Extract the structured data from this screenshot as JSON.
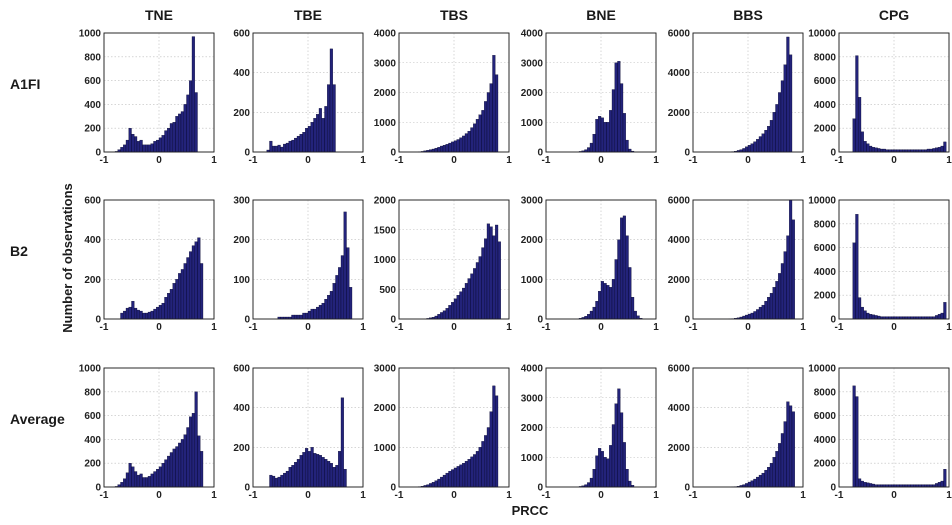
{
  "colors": {
    "bar": "#23237a"
  },
  "chart_data": {
    "type": "bar",
    "xlabel": "PRCC",
    "ylabel": "Number of observations",
    "grid": true,
    "columns": [
      "TNE",
      "TBE",
      "TBS",
      "BNE",
      "BBS",
      "CPG"
    ],
    "rows": [
      "A1FI",
      "B2",
      "Average"
    ],
    "bin_edges": [
      -1,
      -0.95,
      -0.9,
      -0.85,
      -0.8,
      -0.75,
      -0.7,
      -0.65,
      -0.6,
      -0.55,
      -0.5,
      -0.45,
      -0.4,
      -0.35,
      -0.3,
      -0.25,
      -0.2,
      -0.15,
      -0.1,
      -0.05,
      0,
      0.05,
      0.1,
      0.15,
      0.2,
      0.25,
      0.3,
      0.35,
      0.4,
      0.45,
      0.5,
      0.55,
      0.6,
      0.65,
      0.7,
      0.75,
      0.8,
      0.85,
      0.9,
      0.95,
      1
    ],
    "xlim": [
      -1,
      1
    ],
    "xticks": [
      "-1",
      "0",
      "1"
    ],
    "panels": [
      [
        {
          "ylim": [
            0,
            1000
          ],
          "yticks": [
            "0",
            "200",
            "400",
            "600",
            "800",
            "1000"
          ],
          "values": [
            0,
            0,
            0,
            0,
            5,
            20,
            40,
            60,
            100,
            200,
            150,
            130,
            90,
            100,
            60,
            60,
            60,
            70,
            90,
            100,
            120,
            140,
            180,
            200,
            240,
            250,
            300,
            320,
            340,
            400,
            480,
            600,
            970,
            500,
            0,
            0,
            0,
            0,
            0,
            0
          ]
        },
        {
          "ylim": [
            0,
            600
          ],
          "yticks": [
            "0",
            "200",
            "400",
            "600"
          ],
          "values": [
            0,
            0,
            0,
            0,
            0,
            10,
            55,
            30,
            30,
            35,
            25,
            40,
            45,
            55,
            60,
            70,
            80,
            90,
            100,
            120,
            130,
            150,
            170,
            190,
            220,
            170,
            230,
            340,
            520,
            340,
            0,
            0,
            0,
            0,
            0,
            0,
            0,
            0,
            0,
            0
          ]
        },
        {
          "ylim": [
            0,
            4000
          ],
          "yticks": [
            "0",
            "1000",
            "2000",
            "3000",
            "4000"
          ],
          "values": [
            0,
            0,
            0,
            0,
            0,
            0,
            0,
            10,
            20,
            40,
            60,
            80,
            100,
            130,
            160,
            200,
            230,
            260,
            300,
            340,
            380,
            420,
            480,
            540,
            620,
            700,
            820,
            950,
            1100,
            1250,
            1400,
            1700,
            2000,
            2300,
            3250,
            2600,
            0,
            0,
            0,
            0
          ]
        },
        {
          "ylim": [
            0,
            4000
          ],
          "yticks": [
            "0",
            "1000",
            "2000",
            "3000",
            "4000"
          ],
          "values": [
            0,
            0,
            0,
            0,
            0,
            0,
            0,
            0,
            0,
            0,
            0,
            0,
            20,
            40,
            80,
            150,
            300,
            600,
            1100,
            1200,
            1150,
            1000,
            1000,
            1400,
            2100,
            3000,
            3050,
            2300,
            1300,
            400,
            100,
            30,
            0,
            0,
            0,
            0,
            0,
            0,
            0,
            0
          ]
        },
        {
          "ylim": [
            0,
            6000
          ],
          "yticks": [
            "0",
            "2000",
            "4000",
            "6000"
          ],
          "values": [
            0,
            0,
            0,
            0,
            0,
            0,
            0,
            0,
            0,
            0,
            0,
            0,
            0,
            0,
            20,
            40,
            80,
            120,
            180,
            260,
            340,
            420,
            520,
            640,
            780,
            920,
            1100,
            1300,
            1600,
            2000,
            2400,
            3000,
            3600,
            4400,
            5800,
            4900,
            0,
            0,
            0,
            0
          ]
        },
        {
          "ylim": [
            0,
            10000
          ],
          "yticks": [
            "0",
            "2000",
            "4000",
            "6000",
            "8000",
            "10000"
          ],
          "values": [
            0,
            0,
            0,
            0,
            0,
            2800,
            8100,
            4600,
            1700,
            900,
            700,
            500,
            400,
            350,
            300,
            250,
            250,
            200,
            200,
            200,
            200,
            200,
            200,
            200,
            200,
            200,
            200,
            200,
            200,
            200,
            200,
            200,
            250,
            250,
            300,
            350,
            400,
            500,
            850,
            0
          ]
        }
      ],
      [
        {
          "ylim": [
            0,
            600
          ],
          "yticks": [
            "0",
            "200",
            "400",
            "600"
          ],
          "values": [
            0,
            0,
            0,
            0,
            0,
            0,
            30,
            40,
            55,
            60,
            90,
            55,
            45,
            40,
            30,
            30,
            35,
            40,
            50,
            60,
            70,
            80,
            110,
            130,
            150,
            180,
            200,
            230,
            250,
            280,
            310,
            340,
            370,
            390,
            410,
            280,
            0,
            0,
            0,
            0
          ]
        },
        {
          "ylim": [
            0,
            300
          ],
          "yticks": [
            "0",
            "100",
            "200",
            "300"
          ],
          "values": [
            0,
            0,
            0,
            0,
            0,
            0,
            0,
            0,
            0,
            5,
            5,
            5,
            5,
            5,
            10,
            10,
            10,
            10,
            15,
            15,
            20,
            25,
            25,
            30,
            35,
            40,
            50,
            60,
            70,
            90,
            110,
            130,
            160,
            270,
            180,
            80,
            0,
            0,
            0,
            0
          ]
        },
        {
          "ylim": [
            0,
            2000
          ],
          "yticks": [
            "0",
            "500",
            "1000",
            "1500",
            "2000"
          ],
          "values": [
            0,
            0,
            0,
            0,
            0,
            0,
            0,
            0,
            0,
            0,
            10,
            20,
            30,
            50,
            80,
            110,
            140,
            180,
            230,
            280,
            340,
            400,
            460,
            520,
            600,
            680,
            760,
            850,
            950,
            1050,
            1200,
            1350,
            1600,
            1550,
            1400,
            1580,
            1300,
            0,
            0,
            0
          ]
        },
        {
          "ylim": [
            0,
            3000
          ],
          "yticks": [
            "0",
            "1000",
            "2000",
            "3000"
          ],
          "values": [
            0,
            0,
            0,
            0,
            0,
            0,
            0,
            0,
            0,
            0,
            0,
            0,
            20,
            40,
            70,
            120,
            200,
            300,
            450,
            700,
            950,
            900,
            850,
            800,
            1000,
            1500,
            2000,
            2550,
            2600,
            2100,
            1300,
            550,
            200,
            80,
            20,
            0,
            0,
            0,
            0,
            0
          ]
        },
        {
          "ylim": [
            0,
            6000
          ],
          "yticks": [
            "0",
            "2000",
            "4000",
            "6000"
          ],
          "values": [
            0,
            0,
            0,
            0,
            0,
            0,
            0,
            0,
            0,
            0,
            0,
            0,
            0,
            10,
            20,
            40,
            60,
            100,
            150,
            200,
            250,
            300,
            380,
            480,
            600,
            700,
            900,
            1100,
            1300,
            1600,
            1900,
            2300,
            2800,
            3400,
            4200,
            6000,
            5000,
            0,
            0,
            0
          ]
        },
        {
          "ylim": [
            0,
            10000
          ],
          "yticks": [
            "0",
            "2000",
            "4000",
            "6000",
            "8000",
            "10000"
          ],
          "values": [
            0,
            0,
            0,
            0,
            0,
            6400,
            8800,
            1800,
            1000,
            700,
            500,
            400,
            350,
            300,
            250,
            200,
            200,
            200,
            200,
            200,
            200,
            200,
            200,
            200,
            200,
            200,
            200,
            200,
            200,
            200,
            200,
            200,
            200,
            200,
            200,
            300,
            400,
            500,
            1400,
            0
          ]
        }
      ],
      [
        {
          "ylim": [
            0,
            1000
          ],
          "yticks": [
            "0",
            "200",
            "400",
            "600",
            "800",
            "1000"
          ],
          "values": [
            0,
            0,
            0,
            0,
            5,
            20,
            40,
            70,
            120,
            200,
            170,
            130,
            100,
            110,
            80,
            80,
            90,
            110,
            130,
            150,
            170,
            200,
            230,
            260,
            290,
            320,
            340,
            370,
            400,
            440,
            500,
            590,
            620,
            800,
            430,
            300,
            0,
            0,
            0,
            0
          ]
        },
        {
          "ylim": [
            0,
            600
          ],
          "yticks": [
            "0",
            "200",
            "400",
            "600"
          ],
          "values": [
            0,
            0,
            0,
            0,
            0,
            0,
            60,
            55,
            45,
            50,
            60,
            70,
            80,
            100,
            110,
            125,
            140,
            160,
            175,
            195,
            180,
            200,
            170,
            165,
            160,
            150,
            140,
            130,
            120,
            100,
            110,
            180,
            450,
            90,
            0,
            0,
            0,
            0,
            0,
            0
          ]
        },
        {
          "ylim": [
            0,
            3000
          ],
          "yticks": [
            "0",
            "1000",
            "2000",
            "3000"
          ],
          "values": [
            0,
            0,
            0,
            0,
            0,
            0,
            0,
            10,
            20,
            40,
            60,
            90,
            120,
            160,
            200,
            250,
            300,
            350,
            400,
            440,
            480,
            520,
            560,
            600,
            650,
            700,
            760,
            820,
            900,
            1000,
            1150,
            1300,
            1500,
            1900,
            2550,
            2300,
            0,
            0,
            0,
            0
          ]
        },
        {
          "ylim": [
            0,
            4000
          ],
          "yticks": [
            "0",
            "1000",
            "2000",
            "3000",
            "4000"
          ],
          "values": [
            0,
            0,
            0,
            0,
            0,
            0,
            0,
            0,
            0,
            0,
            0,
            0,
            20,
            40,
            80,
            150,
            300,
            600,
            1050,
            1300,
            1200,
            1000,
            950,
            1400,
            2100,
            2800,
            3300,
            2500,
            1500,
            600,
            200,
            60,
            0,
            0,
            0,
            0,
            0,
            0,
            0,
            0
          ]
        },
        {
          "ylim": [
            0,
            6000
          ],
          "yticks": [
            "0",
            "2000",
            "4000",
            "6000"
          ],
          "values": [
            0,
            0,
            0,
            0,
            0,
            0,
            0,
            0,
            0,
            0,
            0,
            0,
            0,
            0,
            10,
            20,
            40,
            80,
            120,
            180,
            250,
            320,
            400,
            500,
            600,
            700,
            850,
            1000,
            1200,
            1500,
            1800,
            2200,
            2700,
            3300,
            4300,
            4100,
            3800,
            0,
            0,
            0
          ]
        },
        {
          "ylim": [
            0,
            10000
          ],
          "yticks": [
            "0",
            "2000",
            "4000",
            "6000",
            "8000",
            "10000"
          ],
          "values": [
            0,
            0,
            0,
            0,
            0,
            8500,
            7600,
            700,
            500,
            400,
            350,
            300,
            250,
            200,
            200,
            200,
            200,
            200,
            200,
            200,
            200,
            200,
            200,
            200,
            200,
            200,
            200,
            200,
            200,
            200,
            200,
            200,
            200,
            200,
            200,
            300,
            400,
            500,
            1500,
            0
          ]
        }
      ]
    ]
  }
}
